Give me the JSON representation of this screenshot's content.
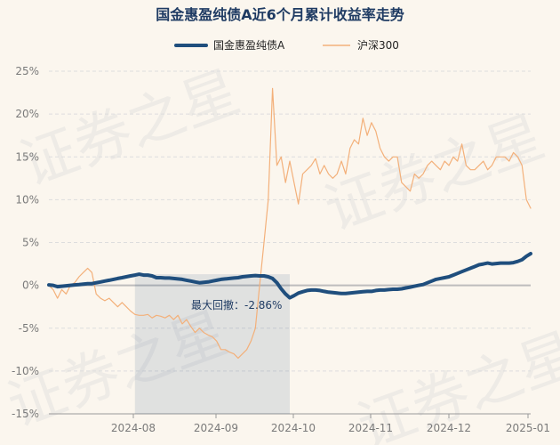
{
  "chart_data": {
    "type": "line",
    "title": "国金惠盈纯债A近6个月累计收益率走势",
    "legend": {
      "placement": "top-center"
    },
    "x_ticks": [
      "2024-08",
      "2024-09",
      "2024-10",
      "2024-11",
      "2024-12",
      "2025-01"
    ],
    "y_ticks": [
      "25%",
      "20%",
      "15%",
      "10%",
      "5%",
      "0%",
      "-5%",
      "-10%",
      "-15%"
    ],
    "ylim": [
      -15,
      25
    ],
    "grid": true,
    "annotation": "最大回撤：-2.86%",
    "drawdown_shade": {
      "start_index": 20,
      "end_index": 56
    },
    "series": [
      {
        "name": "国金惠盈纯债A",
        "color": "#1f4e7d",
        "values": [
          0.05,
          0.0,
          -0.15,
          -0.1,
          -0.05,
          0.0,
          0.05,
          0.1,
          0.15,
          0.2,
          0.2,
          0.3,
          0.4,
          0.5,
          0.6,
          0.7,
          0.8,
          0.9,
          1.0,
          1.1,
          1.2,
          1.3,
          1.2,
          1.2,
          1.1,
          0.9,
          0.9,
          0.85,
          0.85,
          0.8,
          0.75,
          0.7,
          0.6,
          0.5,
          0.4,
          0.3,
          0.35,
          0.4,
          0.5,
          0.6,
          0.7,
          0.75,
          0.8,
          0.85,
          0.9,
          1.0,
          1.05,
          1.1,
          1.15,
          1.1,
          1.1,
          1.0,
          0.8,
          0.3,
          -0.4,
          -1.0,
          -1.45,
          -1.2,
          -0.9,
          -0.75,
          -0.6,
          -0.55,
          -0.55,
          -0.6,
          -0.7,
          -0.8,
          -0.85,
          -0.9,
          -0.95,
          -0.95,
          -0.9,
          -0.85,
          -0.8,
          -0.75,
          -0.7,
          -0.7,
          -0.6,
          -0.55,
          -0.55,
          -0.5,
          -0.45,
          -0.45,
          -0.4,
          -0.3,
          -0.2,
          -0.1,
          0.0,
          0.1,
          0.3,
          0.5,
          0.7,
          0.8,
          0.9,
          1.0,
          1.2,
          1.4,
          1.6,
          1.8,
          2.0,
          2.2,
          2.4,
          2.5,
          2.6,
          2.5,
          2.55,
          2.6,
          2.6,
          2.6,
          2.65,
          2.8,
          3.0,
          3.4,
          3.7
        ]
      },
      {
        "name": "沪深300",
        "color": "#f3b07a",
        "values": [
          0.0,
          -0.5,
          -1.5,
          -0.5,
          -1.0,
          0.0,
          0.3,
          1.0,
          1.5,
          2.0,
          1.5,
          -1.0,
          -1.5,
          -1.8,
          -1.5,
          -2.0,
          -2.5,
          -2.0,
          -2.5,
          -3.0,
          -3.4,
          -3.5,
          -3.5,
          -3.4,
          -3.8,
          -3.5,
          -3.6,
          -3.8,
          -3.5,
          -4.0,
          -3.5,
          -4.5,
          -4.0,
          -4.8,
          -5.5,
          -5.0,
          -5.5,
          -5.8,
          -6.0,
          -6.5,
          -7.5,
          -7.5,
          -7.8,
          -8.0,
          -8.5,
          -8.0,
          -7.5,
          -6.5,
          -5.0,
          0.0,
          5.0,
          10.0,
          23.0,
          14.0,
          15.0,
          12.0,
          14.5,
          12.0,
          9.5,
          13.0,
          13.5,
          14.0,
          14.8,
          13.0,
          14.0,
          13.0,
          12.5,
          13.0,
          14.5,
          13.0,
          16.0,
          17.0,
          16.5,
          19.5,
          17.5,
          19.0,
          18.0,
          16.0,
          15.0,
          14.5,
          15.0,
          15.0,
          12.0,
          11.5,
          11.0,
          13.0,
          12.5,
          13.0,
          14.0,
          14.5,
          14.0,
          13.5,
          14.5,
          14.0,
          15.0,
          14.5,
          16.5,
          14.0,
          13.5,
          13.5,
          14.0,
          14.5,
          13.5,
          14.0,
          15.0,
          15.0,
          15.0,
          14.5,
          15.5,
          15.0,
          14.0,
          10.0,
          9.0
        ]
      }
    ]
  }
}
